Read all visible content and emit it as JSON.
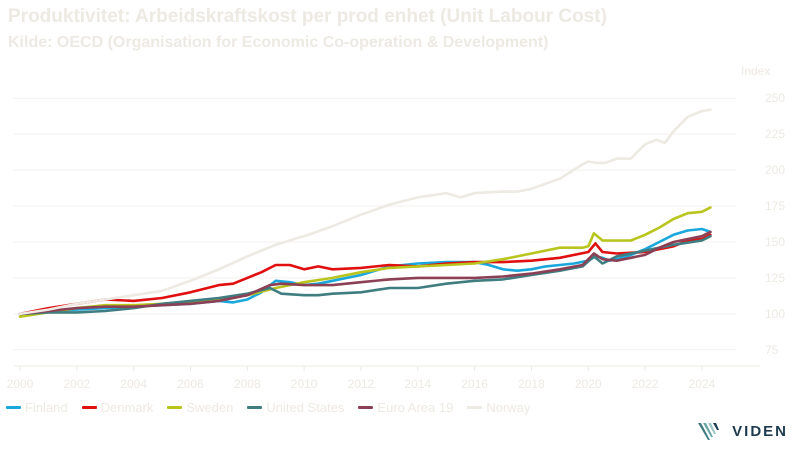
{
  "chart_data": {
    "type": "line",
    "title": "Produktivitet: Arbeidskraftskost per prod enhet (Unit Labour Cost)",
    "subtitle": "Kilde: OECD (Organisation for Economic Co-operation & Development)",
    "ylabel": "Index",
    "xlabel": "",
    "xlim": [
      2000,
      2025.2
    ],
    "ylim": [
      70,
      255
    ],
    "x_ticks": [
      "2000",
      "2002",
      "2004",
      "2006",
      "2008",
      "2010",
      "2012",
      "2014",
      "2016",
      "2018",
      "2020",
      "2022",
      "2024"
    ],
    "y_ticks": [
      "75",
      "100",
      "125",
      "150",
      "175",
      "200",
      "225",
      "250"
    ],
    "grid": "horizontal",
    "legend_position": "bottom",
    "series": [
      {
        "name": "Finland",
        "color": "#1aa7dc",
        "x": [
          2000,
          2001,
          2002,
          2003,
          2004,
          2005,
          2006,
          2007,
          2007.5,
          2008,
          2008.5,
          2009,
          2009.5,
          2010,
          2010.5,
          2011,
          2012,
          2013,
          2014,
          2015,
          2016,
          2016.5,
          2017,
          2017.5,
          2018,
          2018.5,
          2019,
          2019.5,
          2020,
          2020.25,
          2020.5,
          2020.75,
          2021,
          2021.5,
          2022,
          2022.5,
          2023,
          2023.5,
          2024,
          2024.3
        ],
        "values": [
          100,
          102,
          103,
          104,
          105,
          106,
          107,
          109,
          108,
          110,
          115,
          123,
          122,
          120,
          121,
          123,
          127,
          133,
          135,
          136,
          136,
          134,
          131,
          130,
          131,
          133,
          134,
          135,
          137,
          140,
          139,
          137,
          138,
          141,
          145,
          150,
          155,
          158,
          159,
          157
        ]
      },
      {
        "name": "Denmark",
        "color": "#e01010",
        "x": [
          2000,
          2001,
          2002,
          2003,
          2004,
          2005,
          2006,
          2007,
          2007.5,
          2008,
          2008.5,
          2009,
          2009.5,
          2010,
          2010.5,
          2011,
          2012,
          2013,
          2014,
          2015,
          2016,
          2017,
          2018,
          2019,
          2020,
          2020.25,
          2020.5,
          2021,
          2022,
          2023,
          2023.5,
          2024,
          2024.3
        ],
        "values": [
          100,
          104,
          107,
          110,
          109,
          111,
          115,
          120,
          121,
          125,
          129,
          134,
          134,
          131,
          133,
          131,
          132,
          134,
          133,
          135,
          136,
          136,
          137,
          139,
          143,
          149,
          143,
          142,
          143,
          147,
          151,
          152,
          155
        ]
      },
      {
        "name": "Sweden",
        "color": "#b9c51c",
        "x": [
          2000,
          2001,
          2002,
          2003,
          2004,
          2005,
          2006,
          2007,
          2008,
          2009,
          2010,
          2011,
          2012,
          2013,
          2014,
          2015,
          2016,
          2017,
          2018,
          2019,
          2019.8,
          2020,
          2020.2,
          2020.5,
          2021,
          2021.5,
          2022,
          2022.5,
          2023,
          2023.5,
          2024,
          2024.3
        ],
        "values": [
          98,
          101,
          104,
          106,
          106,
          107,
          108,
          110,
          113,
          118,
          122,
          125,
          129,
          132,
          133,
          134,
          135,
          138,
          142,
          146,
          146,
          147,
          156,
          151,
          151,
          151,
          155,
          160,
          166,
          170,
          171,
          174
        ]
      },
      {
        "name": "United States",
        "color": "#3f7d80",
        "x": [
          2000,
          2001,
          2002,
          2003,
          2004,
          2005,
          2006,
          2007,
          2008,
          2008.8,
          2009.2,
          2010,
          2010.5,
          2011,
          2012,
          2013,
          2014,
          2015,
          2016,
          2017,
          2018,
          2019,
          2019.8,
          2020.2,
          2020.5,
          2021,
          2022,
          2022.5,
          2023,
          2024,
          2024.3
        ],
        "values": [
          100,
          101,
          101,
          102,
          104,
          107,
          109,
          111,
          114,
          118,
          114,
          113,
          113,
          114,
          115,
          118,
          118,
          121,
          123,
          124,
          127,
          130,
          133,
          140,
          135,
          140,
          144,
          146,
          148,
          151,
          154
        ]
      },
      {
        "name": "Euro Area 19",
        "color": "#8c4055",
        "x": [
          2000,
          2001,
          2002,
          2003,
          2004,
          2005,
          2006,
          2007,
          2008,
          2008.8,
          2009.2,
          2010,
          2011,
          2012,
          2013,
          2014,
          2015,
          2016,
          2017,
          2018,
          2019,
          2019.8,
          2020.2,
          2020.5,
          2021,
          2022,
          2022.5,
          2023,
          2024,
          2024.3
        ],
        "values": [
          100,
          102,
          104,
          105,
          105,
          106,
          107,
          109,
          113,
          120,
          121,
          120,
          120,
          122,
          124,
          125,
          125,
          125,
          126,
          128,
          131,
          134,
          142,
          138,
          137,
          141,
          146,
          150,
          154,
          157
        ]
      },
      {
        "name": "Norway",
        "color": "#ede9e3",
        "x": [
          2000,
          2001,
          2002,
          2003,
          2004,
          2005,
          2006,
          2007,
          2008,
          2009,
          2009.8,
          2010,
          2010.3,
          2011,
          2012,
          2013,
          2014,
          2015,
          2015.5,
          2016,
          2017,
          2017.5,
          2018,
          2019,
          2019.8,
          2020,
          2020.3,
          2020.6,
          2021,
          2021.5,
          2022,
          2022.4,
          2022.7,
          2023,
          2023.5,
          2024,
          2024.3
        ],
        "values": [
          100,
          103,
          107,
          110,
          113,
          116,
          123,
          131,
          140,
          148,
          153,
          154,
          156,
          161,
          169,
          176,
          181,
          184,
          181,
          184,
          185,
          185,
          187,
          194,
          204,
          206,
          205,
          205,
          208,
          208,
          218,
          221,
          219,
          227,
          237,
          241,
          242
        ]
      }
    ]
  },
  "brand": {
    "name": "VIDEN"
  }
}
